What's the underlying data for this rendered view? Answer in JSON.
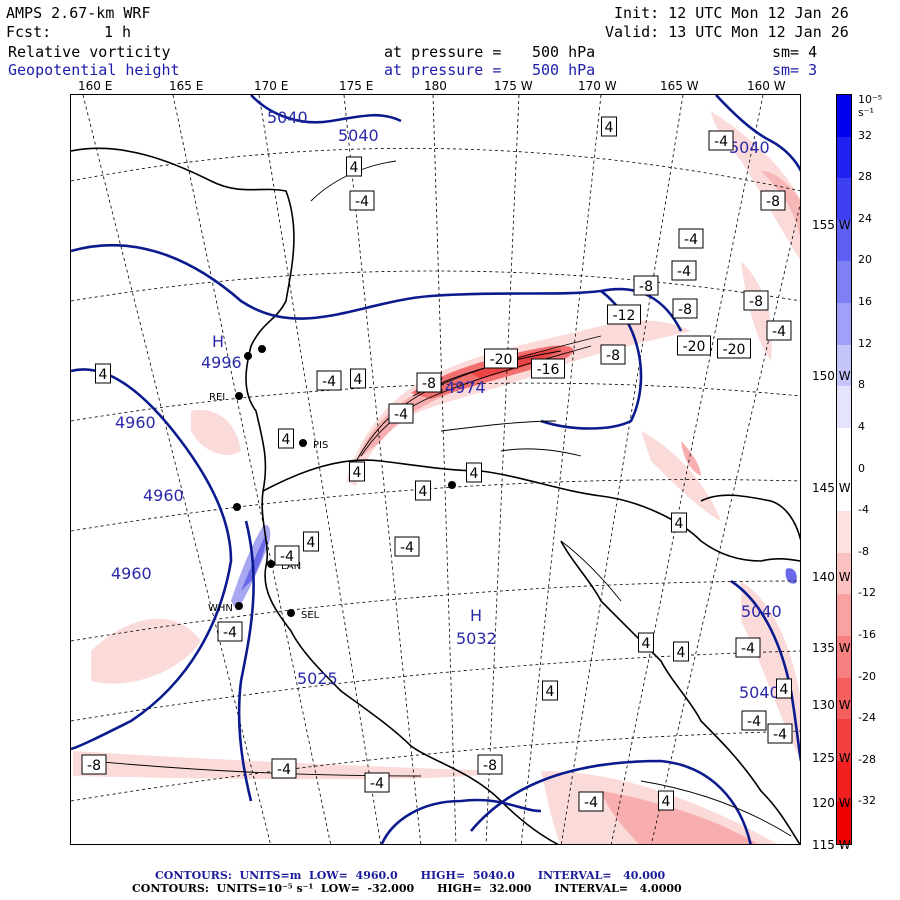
{
  "header": {
    "model": "AMPS 2.67-km WRF",
    "init": "Init: 12 UTC Mon 12 Jan 26",
    "fcst_label": "Fcst:",
    "fcst_value": "1 h",
    "valid": "Valid: 13 UTC Mon 12 Jan 26"
  },
  "fields": [
    {
      "name": "Relative vorticity",
      "level_label": "at pressure =",
      "level": "500 hPa",
      "sm": "sm= 4"
    },
    {
      "name": "Geopotential height",
      "level_label": "at pressure =",
      "level": "500 hPa",
      "sm": "sm= 3"
    }
  ],
  "longitude_labels": [
    "160 E",
    "165 E",
    "170 E",
    "175 E",
    "180",
    "175 W",
    "170 W",
    "165 W",
    "160 W"
  ],
  "latitude_labels": [
    "155 W",
    "150 W",
    "145 W",
    "140 W",
    "135 W",
    "130 W",
    "125 W",
    "120 W",
    "115 W"
  ],
  "colorbar": {
    "unit": "10⁻⁵ s⁻¹",
    "labels": [
      "32",
      "28",
      "24",
      "20",
      "16",
      "12",
      "8",
      "4",
      "0",
      "-4",
      "-8",
      "-12",
      "-16",
      "-20",
      "-24",
      "-28",
      "-32"
    ],
    "colors": [
      "#0000ee",
      "#2020f0",
      "#3f3ff3",
      "#5f5ff4",
      "#7f7ff6",
      "#a0a0f8",
      "#c4c4fa",
      "#e4e4fc",
      "#ffffff",
      "#ffffff",
      "#fde0e0",
      "#fbc2c2",
      "#f9a2a2",
      "#f78080",
      "#f55f5f",
      "#f33f3f",
      "#f11f1f",
      "#ef0000"
    ]
  },
  "station_labels": [
    "REI",
    "PIS",
    "LAN",
    "SEL",
    "WHN"
  ],
  "height_labels": [
    "5040",
    "5040",
    "5040",
    "5040",
    "5040",
    "4960",
    "4960",
    "4960",
    "4974",
    "4996",
    "5025",
    "5032"
  ],
  "high_labels": [
    "H",
    "H"
  ],
  "vorticity_labels": [
    "4",
    "4",
    "-4",
    "-4",
    "-8",
    "-4",
    "-4",
    "-8",
    "-8",
    "-12",
    "-8",
    "-4",
    "-8",
    "-20",
    "-20",
    "-20",
    "-16",
    "-8",
    "-4",
    "4",
    "4",
    "-4",
    "4",
    "4",
    "4",
    "4",
    "-4",
    "4",
    "4",
    "-4",
    "-4",
    "4",
    "4",
    "4",
    "-4",
    "-4",
    "-8",
    "-4",
    "-4",
    "-8",
    "-4",
    "4",
    "4",
    "-4"
  ],
  "footer": {
    "line1": "CONTOURS:  UNITS=m  LOW=  4960.0      HIGH=  5040.0      INTERVAL=   40.000",
    "line2": "CONTOURS:  UNITS=10⁻⁵ s⁻¹  LOW=  -32.000      HIGH=  32.000      INTERVAL=   4.0000"
  }
}
